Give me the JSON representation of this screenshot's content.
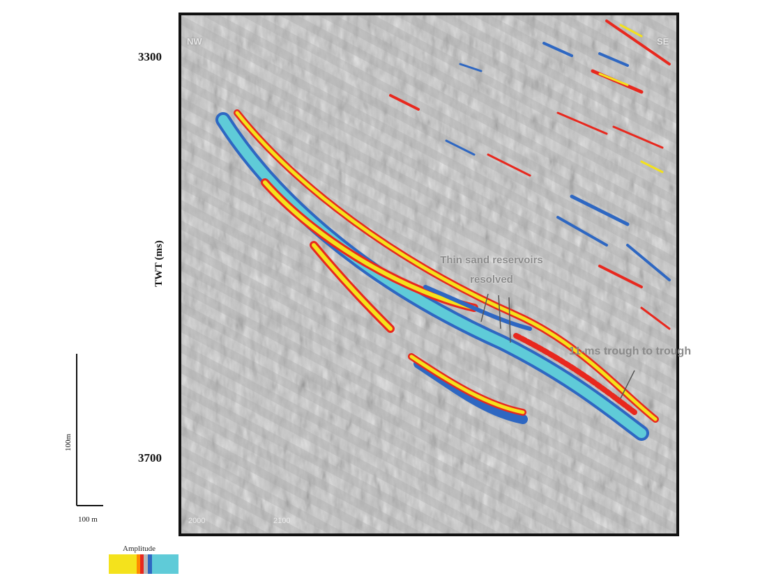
{
  "section": {
    "corner_left": "NW",
    "corner_right": "SE",
    "bottom_left": "2000",
    "bottom_right": "2100"
  },
  "axis": {
    "label": "TWT (ms)",
    "time_top": "3300",
    "time_bottom": "3700"
  },
  "annotations": {
    "reservoirs": "Thin sand reservoirs resolved",
    "trough": "11-ms  trough to trough"
  },
  "scale": {
    "vertical": "100m",
    "horizontal": "100 m"
  },
  "legend": {
    "title": "Amplitude",
    "colors": [
      "#f4e21c",
      "#ff8a00",
      "#e8281e",
      "#b8b8b8",
      "#2e67c2",
      "#5fcbd8"
    ]
  }
}
